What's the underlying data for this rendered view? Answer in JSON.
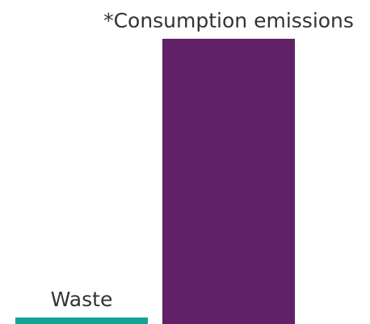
{
  "chart_data": {
    "type": "bar",
    "categories": [
      "Waste",
      "*Consumption emissions"
    ],
    "values": [
      1,
      44
    ],
    "colors": [
      "#0fa496",
      "#612166"
    ],
    "ylim": [
      0,
      44
    ],
    "grid": false,
    "legend": "none",
    "title": "",
    "xlabel": "",
    "ylabel": ""
  }
}
